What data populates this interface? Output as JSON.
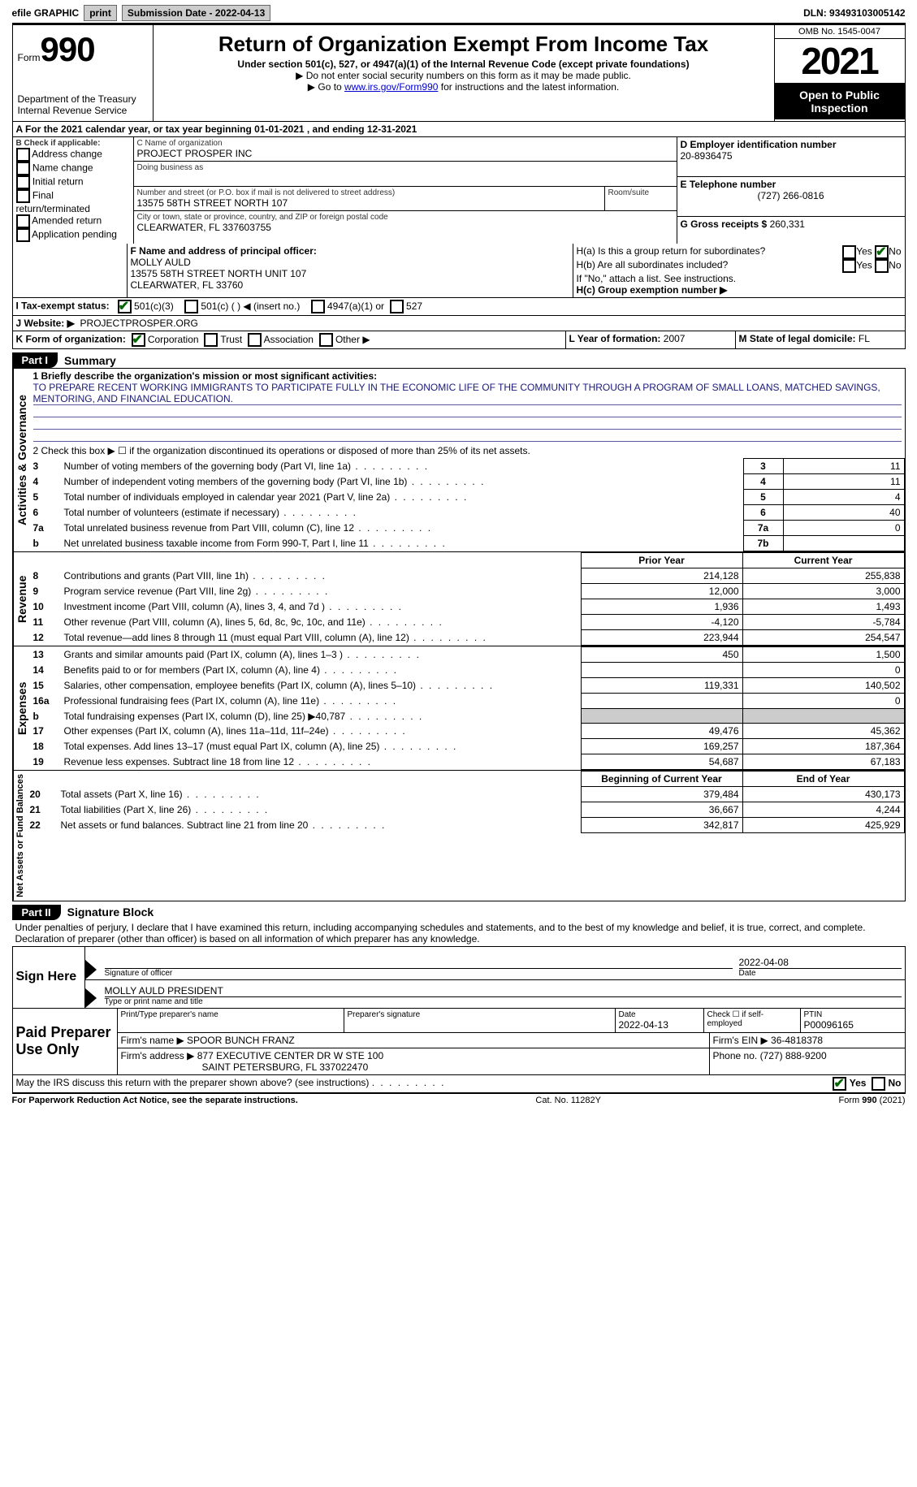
{
  "topbar": {
    "efile_label": "efile GRAPHIC",
    "print_btn": "print",
    "submission_label": "Submission Date - 2022-04-13",
    "dln_label": "DLN: 93493103005142"
  },
  "header": {
    "form_label": "Form",
    "form_number": "990",
    "dept": "Department of the Treasury\nInternal Revenue Service",
    "title": "Return of Organization Exempt From Income Tax",
    "subtitle": "Under section 501(c), 527, or 4947(a)(1) of the Internal Revenue Code (except private foundations)",
    "note1": "▶ Do not enter social security numbers on this form as it may be made public.",
    "note2_pre": "▶ Go to ",
    "note2_link": "www.irs.gov/Form990",
    "note2_post": " for instructions and the latest information.",
    "omb": "OMB No. 1545-0047",
    "tax_year": "2021",
    "open_public": "Open to Public Inspection"
  },
  "period": {
    "line": "A For the 2021 calendar year, or tax year beginning 01-01-2021    , and ending 12-31-2021"
  },
  "sectionB": {
    "label": "B Check if applicable:",
    "items": [
      "Address change",
      "Name change",
      "Initial return",
      "Final return/terminated",
      "Amended return",
      "Application pending"
    ]
  },
  "sectionC": {
    "name_label": "C Name of organization",
    "name": "PROJECT PROSPER INC",
    "dba_label": "Doing business as",
    "dba": "",
    "street_label": "Number and street (or P.O. box if mail is not delivered to street address)",
    "street": "13575 58TH STREET NORTH 107",
    "room_label": "Room/suite",
    "room": "",
    "city_label": "City or town, state or province, country, and ZIP or foreign postal code",
    "city": "CLEARWATER, FL  337603755"
  },
  "sectionD": {
    "label": "D Employer identification number",
    "value": "20-8936475"
  },
  "sectionE": {
    "label": "E Telephone number",
    "value": "(727) 266-0816"
  },
  "sectionG": {
    "label": "G Gross receipts $",
    "value": "260,331"
  },
  "sectionF": {
    "label": "F Name and address of principal officer:",
    "name": "MOLLY AULD",
    "addr1": "13575 58TH STREET NORTH UNIT 107",
    "addr2": "CLEARWATER, FL  33760"
  },
  "sectionH": {
    "ha_label": "H(a)  Is this a group return for subordinates?",
    "ha_yes": "Yes",
    "ha_no": "No",
    "hb_label": "H(b)  Are all subordinates included?",
    "hb_yes": "Yes",
    "hb_no": "No",
    "hb_note": "If \"No,\" attach a list. See instructions.",
    "hc_label": "H(c)  Group exemption number ▶",
    "hc_value": ""
  },
  "sectionI": {
    "label": "I     Tax-exempt status:",
    "opt1": "501(c)(3)",
    "opt2": "501(c) (   ) ◀ (insert no.)",
    "opt3": "4947(a)(1) or",
    "opt4": "527"
  },
  "sectionJ": {
    "label": "J    Website: ▶",
    "value": "PROJECTPROSPER.ORG"
  },
  "sectionK": {
    "label": "K Form of organization:",
    "opts": [
      "Corporation",
      "Trust",
      "Association",
      "Other ▶"
    ]
  },
  "sectionL": {
    "label": "L Year of formation:",
    "value": "2007"
  },
  "sectionM": {
    "label": "M State of legal domicile:",
    "value": "FL"
  },
  "part1": {
    "tab": "Part I",
    "title": "Summary",
    "line1_label": "1   Briefly describe the organization's mission or most significant activities:",
    "line1_value": "TO PREPARE RECENT WORKING IMMIGRANTS TO PARTICIPATE FULLY IN THE ECONOMIC LIFE OF THE COMMUNITY THROUGH A PROGRAM OF SMALL LOANS, MATCHED SAVINGS, MENTORING, AND FINANCIAL EDUCATION.",
    "line2": "2   Check this box ▶ ☐  if the organization discontinued its operations or disposed of more than 25% of its net assets.",
    "vlabel_governance": "Activities & Governance",
    "vlabel_revenue": "Revenue",
    "vlabel_expenses": "Expenses",
    "vlabel_netassets": "Net Assets or Fund Balances",
    "rows_gov": [
      {
        "n": "3",
        "t": "Number of voting members of the governing body (Part VI, line 1a)",
        "box": "3",
        "v": "11"
      },
      {
        "n": "4",
        "t": "Number of independent voting members of the governing body (Part VI, line 1b)",
        "box": "4",
        "v": "11"
      },
      {
        "n": "5",
        "t": "Total number of individuals employed in calendar year 2021 (Part V, line 2a)",
        "box": "5",
        "v": "4"
      },
      {
        "n": "6",
        "t": "Total number of volunteers (estimate if necessary)",
        "box": "6",
        "v": "40"
      },
      {
        "n": "7a",
        "t": "Total unrelated business revenue from Part VIII, column (C), line 12",
        "box": "7a",
        "v": "0"
      },
      {
        "n": "b",
        "t": "Net unrelated business taxable income from Form 990-T, Part I, line 11",
        "box": "7b",
        "v": ""
      }
    ],
    "col_prior": "Prior Year",
    "col_current": "Current Year",
    "rows_rev": [
      {
        "n": "8",
        "t": "Contributions and grants (Part VIII, line 1h)",
        "py": "214,128",
        "cy": "255,838"
      },
      {
        "n": "9",
        "t": "Program service revenue (Part VIII, line 2g)",
        "py": "12,000",
        "cy": "3,000"
      },
      {
        "n": "10",
        "t": "Investment income (Part VIII, column (A), lines 3, 4, and 7d )",
        "py": "1,936",
        "cy": "1,493"
      },
      {
        "n": "11",
        "t": "Other revenue (Part VIII, column (A), lines 5, 6d, 8c, 9c, 10c, and 11e)",
        "py": "-4,120",
        "cy": "-5,784"
      },
      {
        "n": "12",
        "t": "Total revenue—add lines 8 through 11 (must equal Part VIII, column (A), line 12)",
        "py": "223,944",
        "cy": "254,547"
      }
    ],
    "rows_exp": [
      {
        "n": "13",
        "t": "Grants and similar amounts paid (Part IX, column (A), lines 1–3 )",
        "py": "450",
        "cy": "1,500"
      },
      {
        "n": "14",
        "t": "Benefits paid to or for members (Part IX, column (A), line 4)",
        "py": "",
        "cy": "0"
      },
      {
        "n": "15",
        "t": "Salaries, other compensation, employee benefits (Part IX, column (A), lines 5–10)",
        "py": "119,331",
        "cy": "140,502"
      },
      {
        "n": "16a",
        "t": "Professional fundraising fees (Part IX, column (A), line 11e)",
        "py": "",
        "cy": "0"
      },
      {
        "n": "b",
        "t": "Total fundraising expenses (Part IX, column (D), line 25) ▶40,787",
        "py": "GRAY",
        "cy": "GRAY"
      },
      {
        "n": "17",
        "t": "Other expenses (Part IX, column (A), lines 11a–11d, 11f–24e)",
        "py": "49,476",
        "cy": "45,362"
      },
      {
        "n": "18",
        "t": "Total expenses. Add lines 13–17 (must equal Part IX, column (A), line 25)",
        "py": "169,257",
        "cy": "187,364"
      },
      {
        "n": "19",
        "t": "Revenue less expenses. Subtract line 18 from line 12",
        "py": "54,687",
        "cy": "67,183"
      }
    ],
    "col_begin": "Beginning of Current Year",
    "col_end": "End of Year",
    "rows_na": [
      {
        "n": "20",
        "t": "Total assets (Part X, line 16)",
        "py": "379,484",
        "cy": "430,173"
      },
      {
        "n": "21",
        "t": "Total liabilities (Part X, line 26)",
        "py": "36,667",
        "cy": "4,244"
      },
      {
        "n": "22",
        "t": "Net assets or fund balances. Subtract line 21 from line 20",
        "py": "342,817",
        "cy": "425,929"
      }
    ]
  },
  "part2": {
    "tab": "Part II",
    "title": "Signature Block",
    "declaration": "Under penalties of perjury, I declare that I have examined this return, including accompanying schedules and statements, and to the best of my knowledge and belief, it is true, correct, and complete. Declaration of preparer (other than officer) is based on all information of which preparer has any knowledge.",
    "sign_here": "Sign Here",
    "sig_officer_label": "Signature of officer",
    "sig_date": "2022-04-08",
    "sig_date_label": "Date",
    "sig_name": "MOLLY AULD  PRESIDENT",
    "sig_name_label": "Type or print name and title",
    "paid_label": "Paid Preparer Use Only",
    "prep_name_label": "Print/Type preparer's name",
    "prep_name": "",
    "prep_sig_label": "Preparer's signature",
    "prep_date_label": "Date",
    "prep_date": "2022-04-13",
    "self_emp_label": "Check ☐ if self-employed",
    "ptin_label": "PTIN",
    "ptin": "P00096165",
    "firm_name_label": "Firm's name    ▶",
    "firm_name": "SPOOR BUNCH FRANZ",
    "firm_ein_label": "Firm's EIN ▶",
    "firm_ein": "36-4818378",
    "firm_addr_label": "Firm's address ▶",
    "firm_addr1": "877 EXECUTIVE CENTER DR W STE 100",
    "firm_addr2": "SAINT PETERSBURG, FL  337022470",
    "phone_label": "Phone no.",
    "phone": "(727) 888-9200",
    "may_irs": "May the IRS discuss this return with the preparer shown above? (see instructions)",
    "may_yes": "Yes",
    "may_no": "No"
  },
  "footer": {
    "left": "For Paperwork Reduction Act Notice, see the separate instructions.",
    "mid": "Cat. No. 11282Y",
    "right": "Form 990 (2021)"
  }
}
